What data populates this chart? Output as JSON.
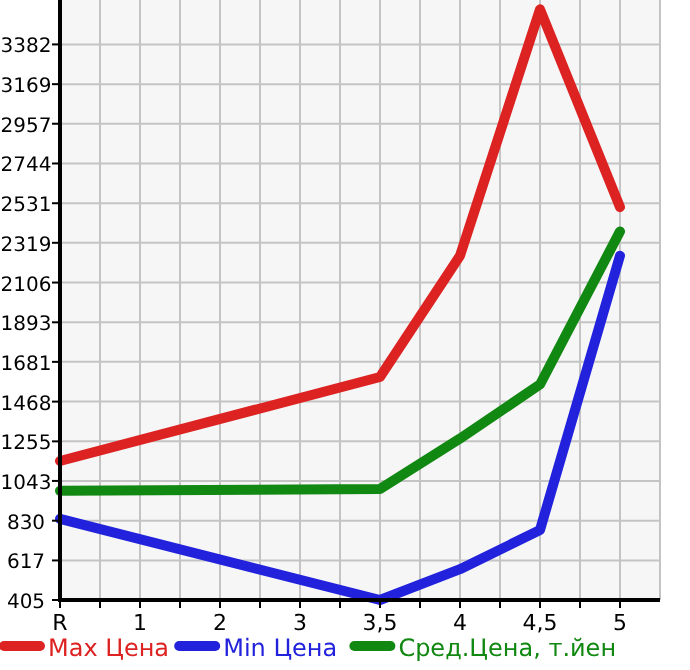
{
  "chart_data": {
    "type": "line",
    "categories": [
      "R",
      null,
      "1",
      null,
      "2",
      null,
      "3",
      null,
      "3,5",
      null,
      "4",
      null,
      "4,5",
      null,
      "5"
    ],
    "series": [
      {
        "name": "Max Цена",
        "color": "#dd2222",
        "values": [
          1150,
          null,
          null,
          null,
          null,
          null,
          null,
          null,
          1600,
          null,
          2250,
          null,
          3570,
          null,
          2510
        ]
      },
      {
        "name": "Min Цена",
        "color": "#2222dd",
        "values": [
          840,
          null,
          null,
          null,
          null,
          null,
          null,
          null,
          405,
          null,
          570,
          null,
          780,
          null,
          2250
        ]
      },
      {
        "name": "Сред.Цена, т.йен",
        "color": "#118811",
        "values": [
          990,
          null,
          null,
          null,
          null,
          null,
          null,
          null,
          1000,
          null,
          1270,
          null,
          1560,
          null,
          2380
        ]
      }
    ],
    "ylim": [
      405,
      3620
    ],
    "yticks": [
      405,
      617,
      830,
      1043,
      1255,
      1468,
      1681,
      1893,
      2106,
      2319,
      2531,
      2744,
      2957,
      3169,
      3382
    ],
    "grid": true,
    "legend": "bottom"
  }
}
